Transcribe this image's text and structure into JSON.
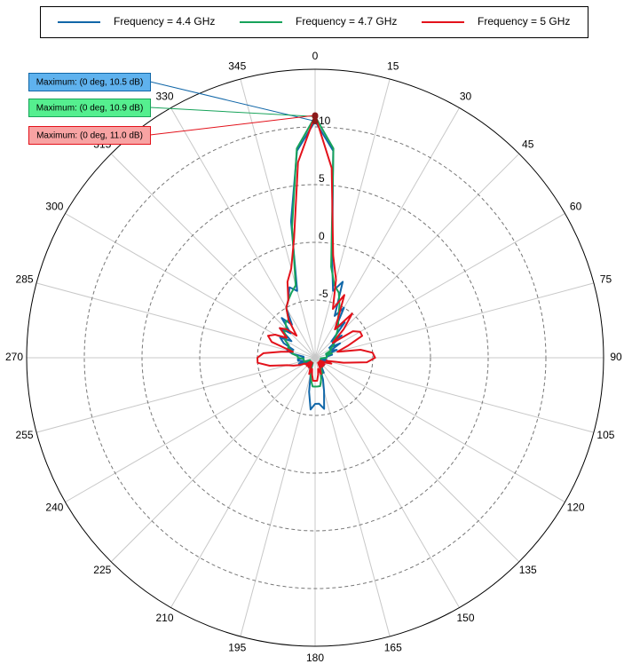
{
  "chart_data": {
    "type": "polar",
    "theta": [
      0,
      5,
      10,
      15,
      20,
      25,
      30,
      35,
      40,
      45,
      50,
      55,
      60,
      65,
      70,
      75,
      80,
      85,
      90,
      95,
      100,
      105,
      110,
      115,
      120,
      125,
      130,
      135,
      140,
      145,
      150,
      155,
      160,
      165,
      170,
      175,
      180,
      185,
      190,
      195,
      200,
      205,
      210,
      215,
      220,
      225,
      230,
      235,
      240,
      245,
      250,
      255,
      260,
      265,
      270,
      275,
      280,
      285,
      290,
      295,
      300,
      305,
      310,
      315,
      320,
      325,
      330,
      335,
      340,
      345,
      350,
      355
    ],
    "thetaticks": [
      0,
      15,
      30,
      45,
      60,
      75,
      90,
      105,
      120,
      135,
      150,
      165,
      180,
      195,
      210,
      225,
      240,
      255,
      270,
      285,
      300,
      315,
      330,
      345
    ],
    "rlim": [
      -10,
      15
    ],
    "rticks": [
      -5,
      0,
      5,
      10
    ],
    "series": [
      {
        "name": "Frequency = 4.4 GHz",
        "color": "#1167a8",
        "values": [
          10.5,
          8,
          -1.5,
          -4,
          -3,
          -6,
          -5,
          -7,
          -6,
          -8,
          -7,
          -8.5,
          -7.5,
          -8.5,
          -8,
          -9,
          -8.5,
          -9,
          -9,
          -9.5,
          -9,
          -9.5,
          -9,
          -9.5,
          -9.5,
          -9.5,
          -9,
          -9.5,
          -9,
          -9,
          -8.5,
          -9,
          -8,
          -7,
          -5.5,
          -6,
          -6,
          -5.5,
          -7,
          -8.5,
          -9,
          -9.5,
          -9,
          -9.5,
          -9.5,
          -9.5,
          -9.5,
          -9,
          -9.5,
          -9,
          -8.5,
          -9,
          -8.5,
          -8.5,
          -9,
          -9,
          -8,
          -7.5,
          -8,
          -7,
          -6.5,
          -7.5,
          -6,
          -7,
          -5.5,
          -6.5,
          -5,
          -4.5,
          -3.5,
          -4,
          2,
          8
        ]
      },
      {
        "name": "Frequency = 4.7 GHz",
        "color": "#17a35a",
        "values": [
          10.9,
          8.2,
          -2,
          -3.5,
          -4,
          -5,
          -6,
          -6.5,
          -7,
          -7.5,
          -8,
          -8,
          -8.5,
          -8.5,
          -9,
          -8.5,
          -9,
          -9,
          -9,
          -9.5,
          -9.5,
          -9.5,
          -9.5,
          -9.5,
          -9.5,
          -9.5,
          -9.5,
          -9.5,
          -9,
          -9,
          -9,
          -8.5,
          -8.5,
          -8,
          -7.5,
          -7.5,
          -7.5,
          -7.5,
          -8,
          -8.5,
          -9,
          -9.5,
          -9.5,
          -9.5,
          -9.5,
          -9.5,
          -9.5,
          -9.5,
          -9.5,
          -9.5,
          -9,
          -9,
          -9,
          -9,
          -8.5,
          -8.5,
          -8,
          -8,
          -7.5,
          -7.5,
          -7,
          -7,
          -6.5,
          -6.5,
          -6,
          -6,
          -5,
          -4.5,
          -4,
          -3.5,
          1.5,
          8.2
        ]
      },
      {
        "name": "Frequency = 5 GHz",
        "color": "#e3121b",
        "values": [
          11,
          6.5,
          -1,
          -3,
          -5.5,
          -4,
          -6,
          -7,
          -5,
          -6.5,
          -8,
          -6,
          -5.5,
          -5.5,
          -7,
          -8,
          -6,
          -5,
          -4.8,
          -5.5,
          -7.5,
          -9,
          -8.5,
          -9,
          -9.5,
          -9,
          -9.5,
          -9,
          -9.5,
          -9,
          -9.5,
          -9,
          -8.5,
          -9,
          -8.5,
          -8,
          -8,
          -8,
          -8.5,
          -9,
          -8.5,
          -9,
          -9.5,
          -9,
          -9.5,
          -9,
          -9.5,
          -9,
          -9,
          -8.5,
          -8,
          -7.5,
          -6,
          -5,
          -5,
          -5.5,
          -7,
          -8,
          -6,
          -5.5,
          -6,
          -7,
          -6,
          -6.5,
          -7.5,
          -6,
          -5,
          -4.5,
          -3,
          -2,
          0.5,
          7
        ]
      }
    ],
    "annotations": [
      {
        "text": "Maximum: (0 deg, 10.5 dB)",
        "color": "#5fb2ee"
      },
      {
        "text": "Maximum: (0 deg, 10.9 dB)",
        "color": "#55ef8f"
      },
      {
        "text": "Maximum: (0 deg, 11.0 dB)",
        "color": "#f8a3a3"
      }
    ]
  }
}
